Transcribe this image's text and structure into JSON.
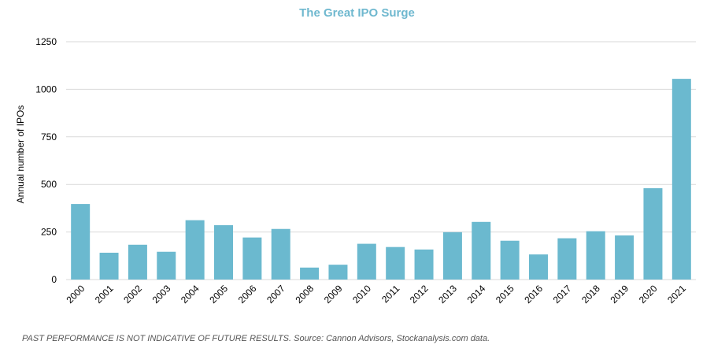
{
  "chart_data": {
    "type": "bar",
    "title": "The Great IPO Surge",
    "ylabel": "Annual number of IPOs",
    "xlabel": "",
    "ylim": [
      0,
      1250
    ],
    "yticks": [
      0,
      250,
      500,
      750,
      1000,
      1250
    ],
    "ytick_labels": [
      "0",
      "250",
      "500",
      "750",
      "1000",
      "1250"
    ],
    "grid": true,
    "bar_color": "#6bb9cf",
    "categories": [
      "2000",
      "2001",
      "2002",
      "2003",
      "2004",
      "2005",
      "2006",
      "2007",
      "2008",
      "2009",
      "2010",
      "2011",
      "2012",
      "2013",
      "2014",
      "2015",
      "2016",
      "2017",
      "2018",
      "2019",
      "2020",
      "2021"
    ],
    "values": [
      397,
      141,
      183,
      146,
      312,
      286,
      221,
      266,
      63,
      78,
      188,
      171,
      158,
      249,
      303,
      204,
      132,
      217,
      254,
      232,
      480,
      1055
    ]
  },
  "footnote": "PAST PERFORMANCE IS NOT INDICATIVE OF FUTURE RESULTS. Source: Cannon Advisors, Stockanalysis.com data."
}
